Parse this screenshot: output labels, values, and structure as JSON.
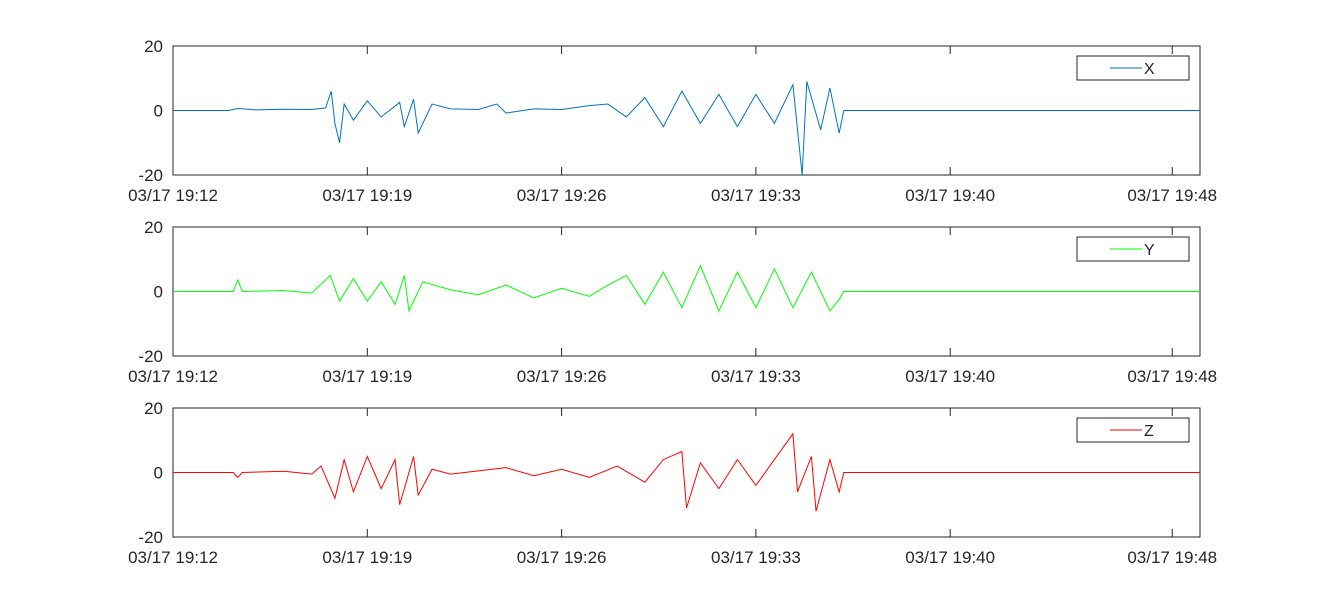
{
  "chart_data": [
    {
      "type": "line",
      "title": "",
      "xlabel": "",
      "ylabel": "",
      "ylim": [
        -20,
        20
      ],
      "yticks": [
        20,
        0,
        -20
      ],
      "x_range": [
        "03/17 19:12",
        "03/17 19:49"
      ],
      "xticks": [
        "03/17 19:12",
        "03/17 19:19",
        "03/17 19:26",
        "03/17 19:33",
        "03/17 19:40",
        "03/17 19:48"
      ],
      "grid": false,
      "legend_position": "top-right",
      "series": [
        {
          "name": "X",
          "color": "#0072BD",
          "points": [
            [
              "03/17 19:12",
              0
            ],
            [
              "03/17 19:14",
              0
            ],
            [
              "03/17 19:14:20",
              0.6
            ],
            [
              "03/17 19:15",
              0.2
            ],
            [
              "03/17 19:16",
              0.4
            ],
            [
              "03/17 19:17",
              0.3
            ],
            [
              "03/17 19:17:30",
              0.8
            ],
            [
              "03/17 19:17:42",
              6
            ],
            [
              "03/17 19:17:50",
              -4
            ],
            [
              "03/17 19:18:00",
              -10
            ],
            [
              "03/17 19:18:10",
              2
            ],
            [
              "03/17 19:18:30",
              -3
            ],
            [
              "03/17 19:19:00",
              3
            ],
            [
              "03/17 19:19:30",
              -2
            ],
            [
              "03/17 19:20:10",
              2.5
            ],
            [
              "03/17 19:20:20",
              -5
            ],
            [
              "03/17 19:20:40",
              3.5
            ],
            [
              "03/17 19:20:50",
              -7
            ],
            [
              "03/17 19:21:20",
              2
            ],
            [
              "03/17 19:22",
              0.5
            ],
            [
              "03/17 19:23",
              0.3
            ],
            [
              "03/17 19:23:40",
              2
            ],
            [
              "03/17 19:24",
              -0.8
            ],
            [
              "03/17 19:25",
              0.5
            ],
            [
              "03/17 19:26",
              0.3
            ],
            [
              "03/17 19:27",
              1.5
            ],
            [
              "03/17 19:27:40",
              2
            ],
            [
              "03/17 19:28:20",
              -2
            ],
            [
              "03/17 19:29",
              4
            ],
            [
              "03/17 19:29:40",
              -5
            ],
            [
              "03/17 19:30:20",
              6
            ],
            [
              "03/17 19:31",
              -4
            ],
            [
              "03/17 19:31:40",
              5
            ],
            [
              "03/17 19:32:20",
              -5
            ],
            [
              "03/17 19:33",
              5
            ],
            [
              "03/17 19:33:40",
              -4
            ],
            [
              "03/17 19:34:20",
              8
            ],
            [
              "03/17 19:34:40",
              -20
            ],
            [
              "03/17 19:34:50",
              9
            ],
            [
              "03/17 19:35:20",
              -6
            ],
            [
              "03/17 19:35:40",
              7
            ],
            [
              "03/17 19:36:00",
              -7
            ],
            [
              "03/17 19:36:10",
              0
            ],
            [
              "03/17 19:40",
              0
            ],
            [
              "03/17 19:49",
              0
            ]
          ]
        }
      ]
    },
    {
      "type": "line",
      "title": "",
      "xlabel": "",
      "ylabel": "",
      "ylim": [
        -20,
        20
      ],
      "yticks": [
        20,
        0,
        -20
      ],
      "x_range": [
        "03/17 19:12",
        "03/17 19:49"
      ],
      "xticks": [
        "03/17 19:12",
        "03/17 19:19",
        "03/17 19:26",
        "03/17 19:33",
        "03/17 19:40",
        "03/17 19:48"
      ],
      "grid": false,
      "legend_position": "top-right",
      "series": [
        {
          "name": "Y",
          "color": "#00FF00",
          "points": [
            [
              "03/17 19:12",
              0
            ],
            [
              "03/17 19:14:10",
              0
            ],
            [
              "03/17 19:14:20",
              3.5
            ],
            [
              "03/17 19:14:30",
              0
            ],
            [
              "03/17 19:16",
              0.3
            ],
            [
              "03/17 19:17",
              -0.5
            ],
            [
              "03/17 19:17:40",
              5
            ],
            [
              "03/17 19:18",
              -3
            ],
            [
              "03/17 19:18:30",
              4
            ],
            [
              "03/17 19:19",
              -3
            ],
            [
              "03/17 19:19:30",
              3
            ],
            [
              "03/17 19:20",
              -4
            ],
            [
              "03/17 19:20:20",
              5
            ],
            [
              "03/17 19:20:30",
              -6
            ],
            [
              "03/17 19:21",
              3
            ],
            [
              "03/17 19:22",
              0.5
            ],
            [
              "03/17 19:23",
              -1
            ],
            [
              "03/17 19:24",
              2
            ],
            [
              "03/17 19:25",
              -2
            ],
            [
              "03/17 19:26",
              1
            ],
            [
              "03/17 19:27",
              -1.5
            ],
            [
              "03/17 19:27:40",
              2
            ],
            [
              "03/17 19:28:20",
              5
            ],
            [
              "03/17 19:29",
              -4
            ],
            [
              "03/17 19:29:40",
              6
            ],
            [
              "03/17 19:30:20",
              -5
            ],
            [
              "03/17 19:31",
              8
            ],
            [
              "03/17 19:31:40",
              -6
            ],
            [
              "03/17 19:32:20",
              6
            ],
            [
              "03/17 19:33",
              -5
            ],
            [
              "03/17 19:33:40",
              7
            ],
            [
              "03/17 19:34:20",
              -5
            ],
            [
              "03/17 19:35",
              6
            ],
            [
              "03/17 19:35:40",
              -6
            ],
            [
              "03/17 19:36:00",
              -2.5
            ],
            [
              "03/17 19:36:10",
              0
            ],
            [
              "03/17 19:49",
              0
            ]
          ]
        }
      ]
    },
    {
      "type": "line",
      "title": "",
      "xlabel": "",
      "ylabel": "",
      "ylim": [
        -20,
        20
      ],
      "yticks": [
        20,
        0,
        -20
      ],
      "x_range": [
        "03/17 19:12",
        "03/17 19:49"
      ],
      "xticks": [
        "03/17 19:12",
        "03/17 19:19",
        "03/17 19:26",
        "03/17 19:33",
        "03/17 19:40",
        "03/17 19:48"
      ],
      "grid": false,
      "legend_position": "top-right",
      "series": [
        {
          "name": "Z",
          "color": "#FF0000",
          "points": [
            [
              "03/17 19:12",
              0
            ],
            [
              "03/17 19:14:10",
              0
            ],
            [
              "03/17 19:14:20",
              -1.5
            ],
            [
              "03/17 19:14:30",
              0
            ],
            [
              "03/17 19:16",
              0.4
            ],
            [
              "03/17 19:17",
              -0.5
            ],
            [
              "03/17 19:17:20",
              2
            ],
            [
              "03/17 19:17:50",
              -8
            ],
            [
              "03/17 19:18:10",
              4
            ],
            [
              "03/17 19:18:30",
              -6
            ],
            [
              "03/17 19:19",
              5
            ],
            [
              "03/17 19:19:30",
              -5
            ],
            [
              "03/17 19:20",
              4
            ],
            [
              "03/17 19:20:10",
              -10
            ],
            [
              "03/17 19:20:40",
              5
            ],
            [
              "03/17 19:20:50",
              -7
            ],
            [
              "03/17 19:21:20",
              1
            ],
            [
              "03/17 19:22",
              -0.5
            ],
            [
              "03/17 19:23",
              0.5
            ],
            [
              "03/17 19:24",
              1.5
            ],
            [
              "03/17 19:25",
              -1
            ],
            [
              "03/17 19:26",
              1
            ],
            [
              "03/17 19:27",
              -1.5
            ],
            [
              "03/17 19:28",
              2
            ],
            [
              "03/17 19:29",
              -3
            ],
            [
              "03/17 19:29:40",
              4
            ],
            [
              "03/17 19:30:20",
              6.5
            ],
            [
              "03/17 19:30:30",
              -11
            ],
            [
              "03/17 19:31",
              3
            ],
            [
              "03/17 19:31:40",
              -5
            ],
            [
              "03/17 19:32:20",
              4
            ],
            [
              "03/17 19:33",
              -4
            ],
            [
              "03/17 19:33:40",
              4
            ],
            [
              "03/17 19:34:20",
              12
            ],
            [
              "03/17 19:34:30",
              -6
            ],
            [
              "03/17 19:35",
              5
            ],
            [
              "03/17 19:35:10",
              -12
            ],
            [
              "03/17 19:35:40",
              4
            ],
            [
              "03/17 19:36:00",
              -6
            ],
            [
              "03/17 19:36:10",
              0
            ],
            [
              "03/17 19:49",
              0
            ]
          ]
        }
      ]
    }
  ]
}
